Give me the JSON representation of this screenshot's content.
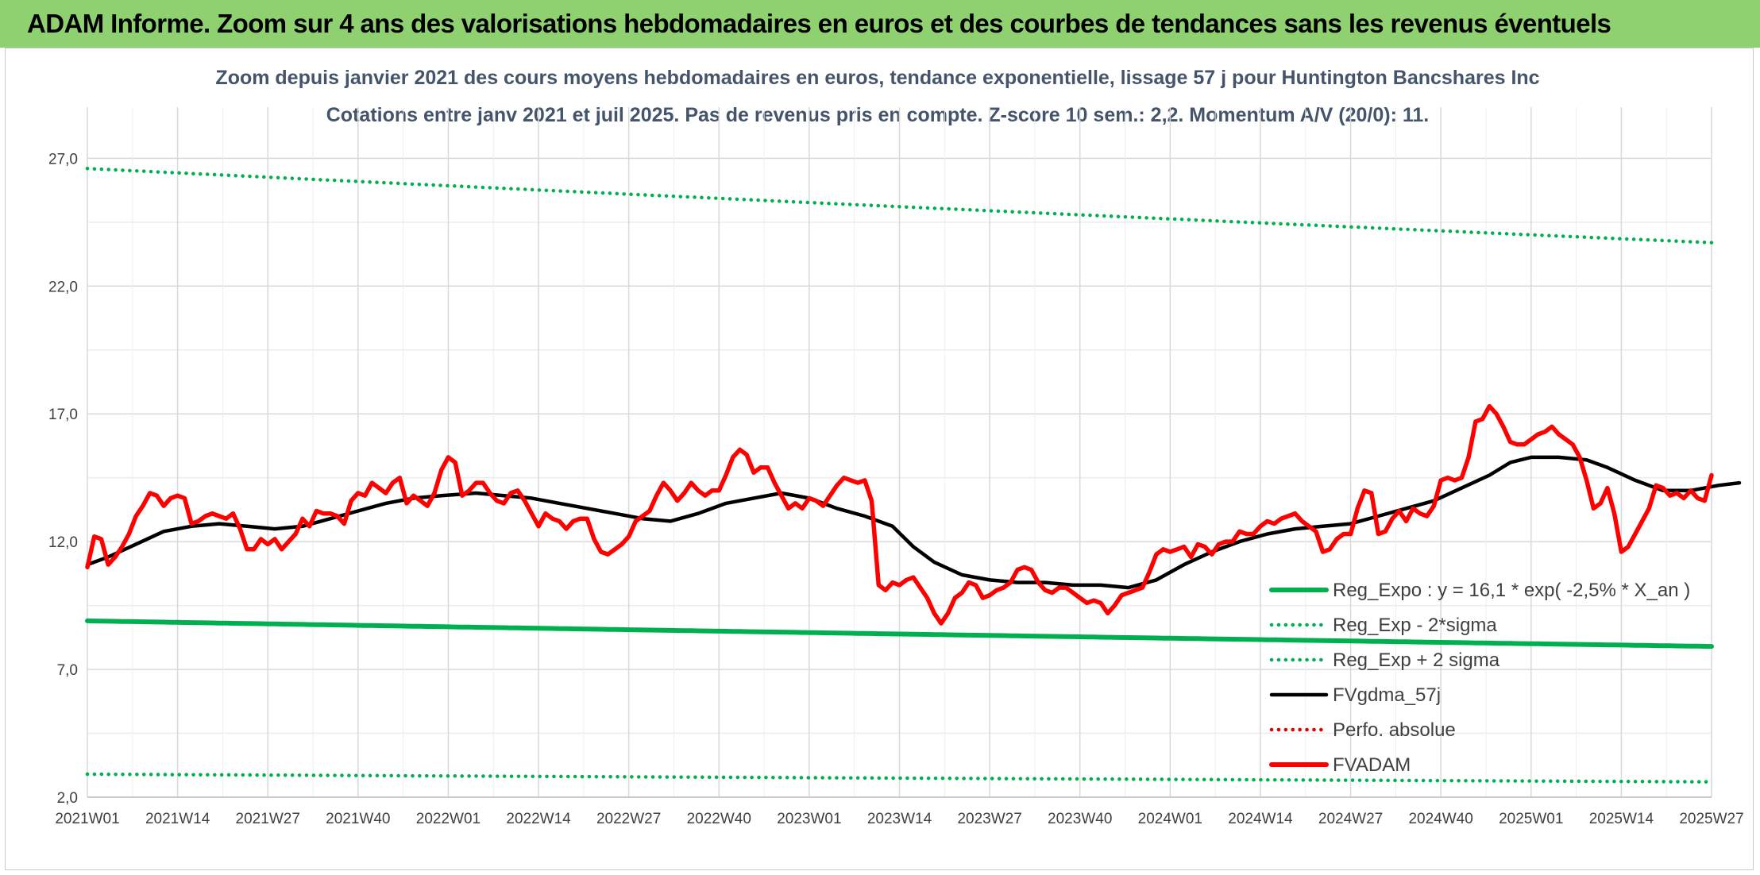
{
  "banner": {
    "title": "ADAM Informe. Zoom sur 4 ans des valorisations hebdomadaires en euros et des courbes de tendances sans les revenus éventuels",
    "color": "#8fd071"
  },
  "chart_data": {
    "type": "line",
    "title_line1": "Zoom depuis janvier 2021 des cours moyens hebdomadaires en euros, tendance exponentielle, lissage 57 j pour Huntington Bancshares Inc",
    "title_line2": "Cotations entre janv 2021 et juil 2025. Pas de revenus pris en compte. Z-score 10 sem.: 2,2. Momentum A/V (20/0): 11.",
    "x_tick_labels": [
      "2021W01",
      "2021W14",
      "2021W27",
      "2021W40",
      "2022W01",
      "2022W14",
      "2022W27",
      "2022W40",
      "2023W01",
      "2023W14",
      "2023W27",
      "2023W40",
      "2024W01",
      "2024W14",
      "2024W27",
      "2024W40",
      "2025W01",
      "2025W14",
      "2025W27"
    ],
    "y_tick_labels": [
      "2,0",
      "7,0",
      "12,0",
      "17,0",
      "22,0",
      "27,0"
    ],
    "ylim": [
      2,
      29
    ],
    "grid": true,
    "legend_position": "right, inside plot",
    "series": [
      {
        "name": "Reg_Expo : y = 16,1 * exp( -2,5% *  X_an )",
        "color": "#00b050",
        "style": "solid",
        "start": 8.9,
        "end": 7.9
      },
      {
        "name": "Reg_Exp - 2*sigma",
        "color": "#00b050",
        "style": "dotted",
        "start": 2.9,
        "end": 2.6
      },
      {
        "name": "Reg_Exp + 2 sigma",
        "color": "#00b050",
        "style": "dotted",
        "start": 26.6,
        "end": 23.7
      },
      {
        "name": "FVgdma_57j",
        "color": "#000000",
        "style": "solid",
        "points": [
          [
            1,
            11.1
          ],
          [
            4,
            11.4
          ],
          [
            8,
            11.9
          ],
          [
            12,
            12.4
          ],
          [
            16,
            12.6
          ],
          [
            20,
            12.7
          ],
          [
            24,
            12.6
          ],
          [
            28,
            12.5
          ],
          [
            32,
            12.6
          ],
          [
            36,
            12.9
          ],
          [
            40,
            13.2
          ],
          [
            44,
            13.5
          ],
          [
            48,
            13.7
          ],
          [
            52,
            13.8
          ],
          [
            57,
            13.9
          ],
          [
            61,
            13.8
          ],
          [
            65,
            13.7
          ],
          [
            69,
            13.5
          ],
          [
            73,
            13.3
          ],
          [
            77,
            13.1
          ],
          [
            81,
            12.9
          ],
          [
            85,
            12.8
          ],
          [
            89,
            13.1
          ],
          [
            93,
            13.5
          ],
          [
            97,
            13.7
          ],
          [
            101,
            13.9
          ],
          [
            105,
            13.7
          ],
          [
            109,
            13.3
          ],
          [
            113,
            13.0
          ],
          [
            117,
            12.6
          ],
          [
            120,
            11.8
          ],
          [
            123,
            11.2
          ],
          [
            127,
            10.7
          ],
          [
            131,
            10.5
          ],
          [
            135,
            10.4
          ],
          [
            139,
            10.4
          ],
          [
            143,
            10.3
          ],
          [
            147,
            10.3
          ],
          [
            151,
            10.2
          ],
          [
            155,
            10.5
          ],
          [
            159,
            11.1
          ],
          [
            163,
            11.6
          ],
          [
            167,
            12.0
          ],
          [
            171,
            12.3
          ],
          [
            175,
            12.5
          ],
          [
            179,
            12.6
          ],
          [
            183,
            12.7
          ],
          [
            187,
            13.0
          ],
          [
            191,
            13.3
          ],
          [
            195,
            13.6
          ],
          [
            199,
            14.1
          ],
          [
            203,
            14.6
          ],
          [
            206,
            15.1
          ],
          [
            209,
            15.3
          ],
          [
            213,
            15.3
          ],
          [
            217,
            15.2
          ],
          [
            220,
            14.9
          ],
          [
            224,
            14.4
          ],
          [
            228,
            14.0
          ],
          [
            232,
            14.0
          ],
          [
            236,
            14.2
          ],
          [
            239,
            14.3
          ]
        ]
      },
      {
        "name": "Perfo. absolue",
        "color": "#e00000",
        "style": "dotted",
        "points": []
      },
      {
        "name": "FVADAM",
        "color": "#ff0000",
        "style": "solid",
        "points": [
          [
            1,
            11.0
          ],
          [
            2,
            12.2
          ],
          [
            3,
            12.1
          ],
          [
            4,
            11.1
          ],
          [
            5,
            11.4
          ],
          [
            6,
            11.8
          ],
          [
            7,
            12.3
          ],
          [
            8,
            13.0
          ],
          [
            9,
            13.4
          ],
          [
            10,
            13.9
          ],
          [
            11,
            13.8
          ],
          [
            12,
            13.4
          ],
          [
            13,
            13.7
          ],
          [
            14,
            13.8
          ],
          [
            15,
            13.7
          ],
          [
            16,
            12.7
          ],
          [
            17,
            12.8
          ],
          [
            18,
            13.0
          ],
          [
            19,
            13.1
          ],
          [
            20,
            13.0
          ],
          [
            21,
            12.9
          ],
          [
            22,
            13.1
          ],
          [
            23,
            12.5
          ],
          [
            24,
            11.7
          ],
          [
            25,
            11.7
          ],
          [
            26,
            12.1
          ],
          [
            27,
            11.9
          ],
          [
            28,
            12.1
          ],
          [
            29,
            11.7
          ],
          [
            30,
            12.0
          ],
          [
            31,
            12.3
          ],
          [
            32,
            12.9
          ],
          [
            33,
            12.6
          ],
          [
            34,
            13.2
          ],
          [
            35,
            13.1
          ],
          [
            36,
            13.1
          ],
          [
            37,
            13.0
          ],
          [
            38,
            12.7
          ],
          [
            39,
            13.6
          ],
          [
            40,
            13.9
          ],
          [
            41,
            13.8
          ],
          [
            42,
            14.3
          ],
          [
            43,
            14.1
          ],
          [
            44,
            13.9
          ],
          [
            45,
            14.3
          ],
          [
            46,
            14.5
          ],
          [
            47,
            13.5
          ],
          [
            48,
            13.8
          ],
          [
            49,
            13.6
          ],
          [
            50,
            13.4
          ],
          [
            51,
            13.9
          ],
          [
            52,
            14.8
          ],
          [
            53,
            15.3
          ],
          [
            54,
            15.1
          ],
          [
            55,
            13.8
          ],
          [
            56,
            14.0
          ],
          [
            57,
            14.3
          ],
          [
            58,
            14.3
          ],
          [
            59,
            13.9
          ],
          [
            60,
            13.6
          ],
          [
            61,
            13.5
          ],
          [
            62,
            13.9
          ],
          [
            63,
            14.0
          ],
          [
            64,
            13.6
          ],
          [
            65,
            13.1
          ],
          [
            66,
            12.6
          ],
          [
            67,
            13.1
          ],
          [
            68,
            12.9
          ],
          [
            69,
            12.8
          ],
          [
            70,
            12.5
          ],
          [
            71,
            12.8
          ],
          [
            72,
            12.9
          ],
          [
            73,
            12.9
          ],
          [
            74,
            12.1
          ],
          [
            75,
            11.6
          ],
          [
            76,
            11.5
          ],
          [
            77,
            11.7
          ],
          [
            78,
            11.9
          ],
          [
            79,
            12.2
          ],
          [
            80,
            12.8
          ],
          [
            81,
            13.0
          ],
          [
            82,
            13.2
          ],
          [
            83,
            13.8
          ],
          [
            84,
            14.3
          ],
          [
            85,
            14.0
          ],
          [
            86,
            13.6
          ],
          [
            87,
            13.9
          ],
          [
            88,
            14.3
          ],
          [
            89,
            14.0
          ],
          [
            90,
            13.8
          ],
          [
            91,
            14.0
          ],
          [
            92,
            14.0
          ],
          [
            93,
            14.6
          ],
          [
            94,
            15.3
          ],
          [
            95,
            15.6
          ],
          [
            96,
            15.4
          ],
          [
            97,
            14.7
          ],
          [
            98,
            14.9
          ],
          [
            99,
            14.9
          ],
          [
            100,
            14.3
          ],
          [
            101,
            13.8
          ],
          [
            102,
            13.3
          ],
          [
            103,
            13.5
          ],
          [
            104,
            13.3
          ],
          [
            105,
            13.7
          ],
          [
            106,
            13.6
          ],
          [
            107,
            13.4
          ],
          [
            108,
            13.8
          ],
          [
            109,
            14.2
          ],
          [
            110,
            14.5
          ],
          [
            111,
            14.4
          ],
          [
            112,
            14.3
          ],
          [
            113,
            14.4
          ],
          [
            114,
            13.6
          ],
          [
            115,
            10.3
          ],
          [
            116,
            10.1
          ],
          [
            117,
            10.4
          ],
          [
            118,
            10.3
          ],
          [
            119,
            10.5
          ],
          [
            120,
            10.6
          ],
          [
            121,
            10.2
          ],
          [
            122,
            9.8
          ],
          [
            123,
            9.2
          ],
          [
            124,
            8.8
          ],
          [
            125,
            9.2
          ],
          [
            126,
            9.8
          ],
          [
            127,
            10.0
          ],
          [
            128,
            10.4
          ],
          [
            129,
            10.3
          ],
          [
            130,
            9.8
          ],
          [
            131,
            9.9
          ],
          [
            132,
            10.1
          ],
          [
            133,
            10.2
          ],
          [
            134,
            10.4
          ],
          [
            135,
            10.9
          ],
          [
            136,
            11.0
          ],
          [
            137,
            10.9
          ],
          [
            138,
            10.4
          ],
          [
            139,
            10.1
          ],
          [
            140,
            10.0
          ],
          [
            141,
            10.2
          ],
          [
            142,
            10.2
          ],
          [
            143,
            10.0
          ],
          [
            144,
            9.8
          ],
          [
            145,
            9.6
          ],
          [
            146,
            9.7
          ],
          [
            147,
            9.6
          ],
          [
            148,
            9.2
          ],
          [
            149,
            9.5
          ],
          [
            150,
            9.9
          ],
          [
            151,
            10.0
          ],
          [
            152,
            10.1
          ],
          [
            153,
            10.2
          ],
          [
            154,
            10.8
          ],
          [
            155,
            11.5
          ],
          [
            156,
            11.7
          ],
          [
            157,
            11.6
          ],
          [
            158,
            11.7
          ],
          [
            159,
            11.8
          ],
          [
            160,
            11.4
          ],
          [
            161,
            11.9
          ],
          [
            162,
            11.8
          ],
          [
            163,
            11.5
          ],
          [
            164,
            11.9
          ],
          [
            165,
            12.0
          ],
          [
            166,
            12.0
          ],
          [
            167,
            12.4
          ],
          [
            168,
            12.3
          ],
          [
            169,
            12.3
          ],
          [
            170,
            12.6
          ],
          [
            171,
            12.8
          ],
          [
            172,
            12.7
          ],
          [
            173,
            12.9
          ],
          [
            174,
            13.0
          ],
          [
            175,
            13.1
          ],
          [
            176,
            12.8
          ],
          [
            177,
            12.6
          ],
          [
            178,
            12.4
          ],
          [
            179,
            11.6
          ],
          [
            180,
            11.7
          ],
          [
            181,
            12.1
          ],
          [
            182,
            12.3
          ],
          [
            183,
            12.3
          ],
          [
            184,
            13.3
          ],
          [
            185,
            14.0
          ],
          [
            186,
            13.9
          ],
          [
            187,
            12.3
          ],
          [
            188,
            12.4
          ],
          [
            189,
            12.9
          ],
          [
            190,
            13.2
          ],
          [
            191,
            12.8
          ],
          [
            192,
            13.3
          ],
          [
            193,
            13.1
          ],
          [
            194,
            13.0
          ],
          [
            195,
            13.4
          ],
          [
            196,
            14.4
          ],
          [
            197,
            14.5
          ],
          [
            198,
            14.4
          ],
          [
            199,
            14.5
          ],
          [
            200,
            15.3
          ],
          [
            201,
            16.7
          ],
          [
            202,
            16.8
          ],
          [
            203,
            17.3
          ],
          [
            204,
            17.0
          ],
          [
            205,
            16.5
          ],
          [
            206,
            15.9
          ],
          [
            207,
            15.8
          ],
          [
            208,
            15.8
          ],
          [
            209,
            16.0
          ],
          [
            210,
            16.2
          ],
          [
            211,
            16.3
          ],
          [
            212,
            16.5
          ],
          [
            213,
            16.2
          ],
          [
            214,
            16.0
          ],
          [
            215,
            15.8
          ],
          [
            216,
            15.3
          ],
          [
            217,
            14.4
          ],
          [
            218,
            13.3
          ],
          [
            219,
            13.5
          ],
          [
            220,
            14.1
          ],
          [
            221,
            13.1
          ],
          [
            222,
            11.6
          ],
          [
            223,
            11.8
          ],
          [
            224,
            12.3
          ],
          [
            225,
            12.8
          ],
          [
            226,
            13.3
          ],
          [
            227,
            14.2
          ],
          [
            228,
            14.1
          ],
          [
            229,
            13.8
          ],
          [
            230,
            13.9
          ],
          [
            231,
            13.7
          ],
          [
            232,
            14.0
          ],
          [
            233,
            13.7
          ],
          [
            234,
            13.6
          ],
          [
            235,
            14.6
          ]
        ]
      }
    ]
  }
}
